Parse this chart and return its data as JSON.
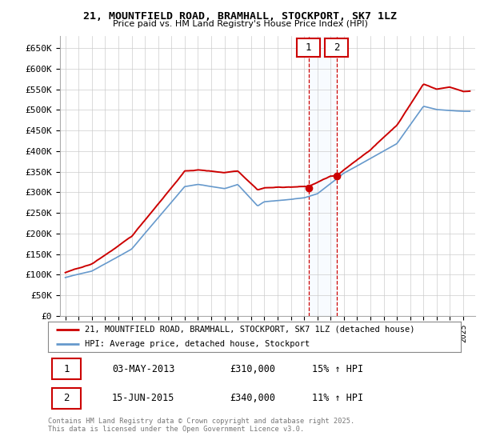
{
  "title": "21, MOUNTFIELD ROAD, BRAMHALL, STOCKPORT, SK7 1LZ",
  "subtitle": "Price paid vs. HM Land Registry's House Price Index (HPI)",
  "ylabel_ticks": [
    "£0",
    "£50K",
    "£100K",
    "£150K",
    "£200K",
    "£250K",
    "£300K",
    "£350K",
    "£400K",
    "£450K",
    "£500K",
    "£550K",
    "£600K",
    "£650K"
  ],
  "ytick_vals": [
    0,
    50000,
    100000,
    150000,
    200000,
    250000,
    300000,
    350000,
    400000,
    450000,
    500000,
    550000,
    600000,
    650000
  ],
  "ylim": [
    0,
    680000
  ],
  "line1_color": "#cc0000",
  "line2_color": "#6699cc",
  "vline_color": "#cc0000",
  "vspan_color": "#ddeeff",
  "purchase1_price": 310000,
  "purchase2_price": 340000,
  "legend_label1": "21, MOUNTFIELD ROAD, BRAMHALL, STOCKPORT, SK7 1LZ (detached house)",
  "legend_label2": "HPI: Average price, detached house, Stockport",
  "transaction1_date": "03-MAY-2013",
  "transaction2_date": "15-JUN-2015",
  "transaction1_pct": "15% ↑ HPI",
  "transaction2_pct": "11% ↑ HPI",
  "footer": "Contains HM Land Registry data © Crown copyright and database right 2025.\nThis data is licensed under the Open Government Licence v3.0.",
  "background_color": "#ffffff",
  "grid_color": "#cccccc",
  "p1_x": 2013.34,
  "p2_x": 2015.46,
  "xmin": 1995,
  "xmax": 2025
}
